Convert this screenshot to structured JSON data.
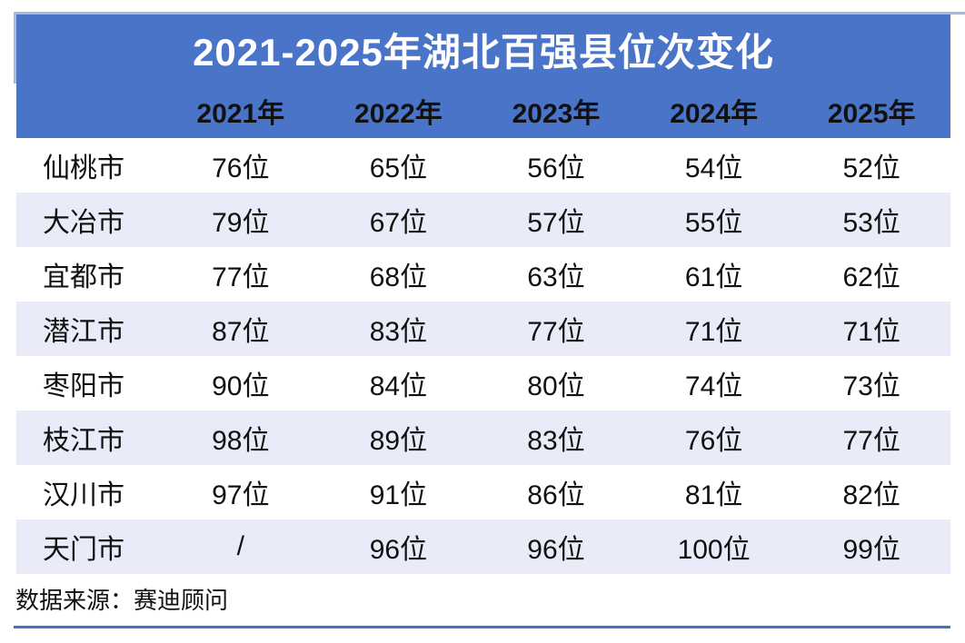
{
  "title": "2021-2025年湖北百强县位次变化",
  "table": {
    "columns": [
      "2021年",
      "2022年",
      "2023年",
      "2024年",
      "2025年"
    ],
    "rows": [
      {
        "city": "仙桃市",
        "values": [
          "76位",
          "65位",
          "56位",
          "54位",
          "52位"
        ]
      },
      {
        "city": "大冶市",
        "values": [
          "79位",
          "67位",
          "57位",
          "55位",
          "53位"
        ]
      },
      {
        "city": "宜都市",
        "values": [
          "77位",
          "68位",
          "63位",
          "61位",
          "62位"
        ]
      },
      {
        "city": "潜江市",
        "values": [
          "87位",
          "83位",
          "77位",
          "71位",
          "71位"
        ]
      },
      {
        "city": "枣阳市",
        "values": [
          "90位",
          "84位",
          "80位",
          "74位",
          "73位"
        ]
      },
      {
        "city": "枝江市",
        "values": [
          "98位",
          "89位",
          "83位",
          "76位",
          "77位"
        ]
      },
      {
        "city": "汉川市",
        "values": [
          "97位",
          "91位",
          "86位",
          "81位",
          "82位"
        ]
      },
      {
        "city": "天门市",
        "values": [
          "/",
          "96位",
          "96位",
          "100位",
          "99位"
        ]
      }
    ]
  },
  "footer": {
    "source": "数据来源：赛迪顾问"
  },
  "colors": {
    "header_blue": "#4A74C8",
    "edge_light_blue": "#A9BAE0",
    "row_band": "#E9ECF8",
    "bottom_rule": "#4472C4",
    "title_text": "#FFFFFF",
    "body_text": "#111111"
  },
  "chart_data": {
    "type": "table",
    "title": "2021-2025年湖北百强县位次变化",
    "categories": [
      "2021年",
      "2022年",
      "2023年",
      "2024年",
      "2025年"
    ],
    "series": [
      {
        "name": "仙桃市",
        "values": [
          76,
          65,
          56,
          54,
          52
        ]
      },
      {
        "name": "大冶市",
        "values": [
          79,
          67,
          57,
          55,
          53
        ]
      },
      {
        "name": "宜都市",
        "values": [
          77,
          68,
          63,
          61,
          62
        ]
      },
      {
        "name": "潜江市",
        "values": [
          87,
          83,
          77,
          71,
          71
        ]
      },
      {
        "name": "枣阳市",
        "values": [
          90,
          84,
          80,
          74,
          73
        ]
      },
      {
        "name": "枝江市",
        "values": [
          98,
          89,
          83,
          76,
          77
        ]
      },
      {
        "name": "汉川市",
        "values": [
          97,
          91,
          86,
          81,
          82
        ]
      },
      {
        "name": "天门市",
        "values": [
          null,
          96,
          96,
          100,
          99
        ]
      }
    ],
    "unit": "位",
    "source": "数据来源：赛迪顾问"
  }
}
